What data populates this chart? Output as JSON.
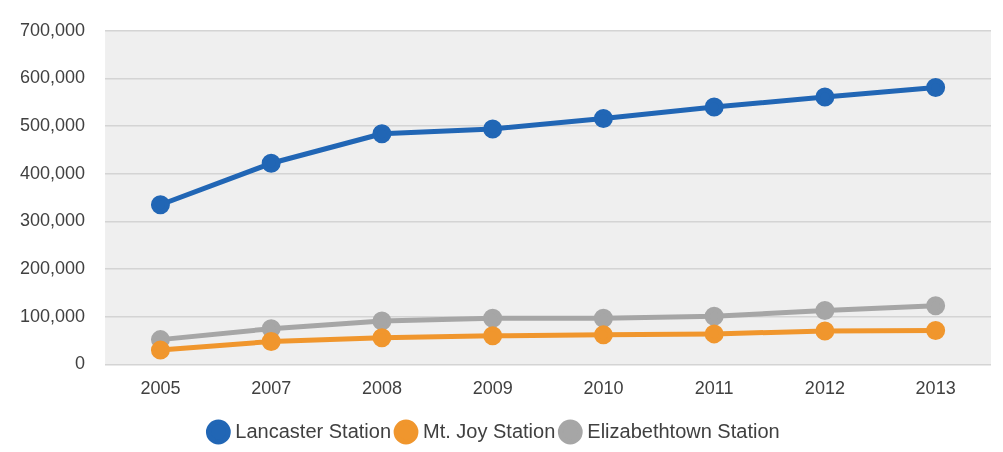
{
  "chart_data": {
    "type": "line",
    "categories": [
      "2005",
      "2007",
      "2008",
      "2009",
      "2010",
      "2011",
      "2012",
      "2013"
    ],
    "series": [
      {
        "name": "Lancaster Station",
        "color": "#2166b5",
        "values": [
          335000,
          422000,
          484000,
          494000,
          516000,
          540000,
          561000,
          581000
        ]
      },
      {
        "name": "Mt. Joy Station",
        "color": "#f0962d",
        "values": [
          30000,
          48000,
          56000,
          60000,
          62000,
          64000,
          70000,
          71000
        ]
      },
      {
        "name": "Elizabethtown Station",
        "color": "#a6a6a6",
        "values": [
          52000,
          75000,
          91000,
          97000,
          97000,
          101000,
          113000,
          123000
        ]
      }
    ],
    "ylim": [
      0,
      700000
    ],
    "yticks": [
      {
        "value": 0,
        "label": "0"
      },
      {
        "value": 100000,
        "label": "100,000"
      },
      {
        "value": 200000,
        "label": "200,000"
      },
      {
        "value": 300000,
        "label": "300,000"
      },
      {
        "value": 400000,
        "label": "400,000"
      },
      {
        "value": 500000,
        "label": "500,000"
      },
      {
        "value": 600000,
        "label": "600,000"
      },
      {
        "value": 700000,
        "label": "700,000"
      }
    ],
    "grid": "y",
    "legend": "bottom",
    "marker": "circle",
    "line_style": "solid"
  }
}
